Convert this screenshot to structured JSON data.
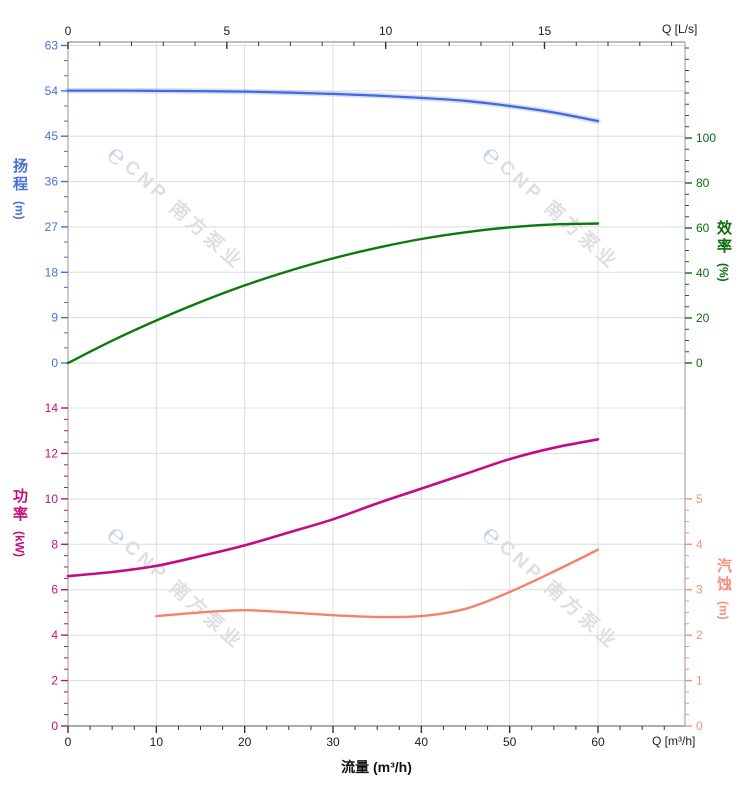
{
  "watermark": {
    "logo_glyph": "℮",
    "text": "CNP 南方泵业",
    "text_color": "#dedee4",
    "logo_color": "#c7d3ec"
  },
  "labels": {
    "x_top_unit": "Q [L/s]",
    "x_bottom_unit": "Q [m³/h]",
    "x_title": "流量 (m³/h)",
    "head_title": "扬程",
    "head_unit": "(m)",
    "eff_title": "效率",
    "eff_unit": "(%)",
    "power_title": "功率",
    "power_unit": "(kW)",
    "npsh_title": "汽蚀",
    "npsh_unit": "(m)"
  },
  "colors": {
    "head_curve": "#4468dd",
    "head_halo": "rgba(110,140,235,0.28)",
    "head_label": "#4a6fd8",
    "eff_curve": "#0b7a0b",
    "eff_label": "#0b6e0b",
    "power_curve": "#c20d81",
    "power_label": "#c01080",
    "npsh_curve": "#f5826c",
    "npsh_label": "#f5917c",
    "grid": "#dcdcdc",
    "frame": "#a8a8a8",
    "tick_dark": "#333333"
  },
  "axes": {
    "x_bottom": {
      "majors": [
        0,
        10,
        20,
        30,
        40,
        50,
        60
      ],
      "minor_step": 2.5,
      "max": 67.5
    },
    "x_top": {
      "majors": [
        0,
        5,
        10,
        15
      ],
      "minor_step": 1,
      "max": 19
    },
    "head": {
      "majors": [
        0,
        9,
        18,
        27,
        36,
        45,
        54,
        63
      ],
      "minor_step": 3,
      "max": 63
    },
    "eff": {
      "majors": [
        0,
        20,
        40,
        60,
        80,
        100
      ],
      "minor_step": 5,
      "max": 140
    },
    "power": {
      "majors": [
        0,
        2,
        4,
        6,
        8,
        10,
        12,
        14
      ],
      "minor_step": 0.5,
      "max": 14
    },
    "npsh": {
      "majors": [
        0,
        1,
        2,
        3,
        4,
        5
      ],
      "minor_step": 0.25,
      "max": 5
    }
  },
  "chart_data": [
    {
      "type": "line",
      "title": "扬程 / 效率 vs 流量",
      "x_axis_bottom": "流量 (m³/h)",
      "x_axis_top": "Q [L/s]",
      "x_range_m3h": [
        0,
        69.8
      ],
      "x_range_ls": [
        0,
        19.4
      ],
      "y_left": {
        "label": "扬程 (m)",
        "range": [
          0,
          63
        ]
      },
      "y_right": {
        "label": "效率 (%)",
        "range": [
          0,
          100
        ]
      },
      "grid": true,
      "series": [
        {
          "name": "扬程",
          "unit": "m",
          "axis": "left",
          "x": [
            0,
            5,
            10,
            15,
            20,
            25,
            30,
            35,
            40,
            45,
            50,
            55,
            60
          ],
          "values": [
            54.05,
            54.05,
            54.0,
            53.95,
            53.85,
            53.65,
            53.4,
            53.05,
            52.6,
            52.0,
            51.0,
            49.7,
            48.0
          ]
        },
        {
          "name": "效率",
          "unit": "%",
          "axis": "right",
          "x": [
            0,
            5,
            10,
            15,
            20,
            25,
            30,
            35,
            40,
            45,
            50,
            55,
            60
          ],
          "values": [
            0,
            9.9,
            18.9,
            27.1,
            34.5,
            40.9,
            46.5,
            51.2,
            55.1,
            58.1,
            60.3,
            61.6,
            62.0
          ]
        }
      ]
    },
    {
      "type": "line",
      "title": "功率 / 汽蚀 vs 流量",
      "x_axis_bottom": "流量 (m³/h)",
      "x_range_m3h": [
        0,
        69.8
      ],
      "y_left": {
        "label": "功率 (kW)",
        "range": [
          0,
          14
        ]
      },
      "y_right": {
        "label": "汽蚀 (m)",
        "range": [
          0,
          5
        ]
      },
      "grid": true,
      "series": [
        {
          "name": "功率",
          "unit": "kW",
          "axis": "left",
          "x": [
            0,
            5,
            10,
            15,
            20,
            25,
            30,
            35,
            40,
            45,
            50,
            55,
            60
          ],
          "values": [
            6.6,
            6.78,
            7.05,
            7.48,
            7.95,
            8.52,
            9.1,
            9.8,
            10.45,
            11.1,
            11.75,
            12.25,
            12.62
          ]
        },
        {
          "name": "汽蚀",
          "unit": "m",
          "axis": "right",
          "x": [
            10,
            15,
            20,
            25,
            30,
            35,
            40,
            45,
            50,
            55,
            60
          ],
          "values": [
            2.42,
            2.5,
            2.55,
            2.5,
            2.44,
            2.4,
            2.42,
            2.58,
            2.95,
            3.4,
            3.88
          ]
        }
      ]
    }
  ]
}
